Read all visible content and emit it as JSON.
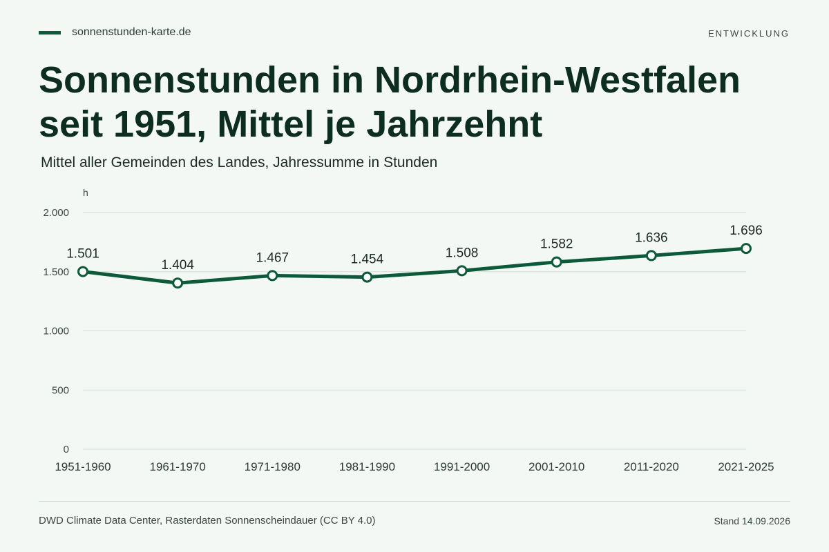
{
  "header": {
    "brand": "sonnenstunden-karte.de",
    "tag": "ENTWICKLUNG",
    "title": "Sonnenstunden in Nordrhein-Westfalen seit 1951, Mittel je Jahrzehnt",
    "subtitle": "Mittel aller Gemeinden des Landes, Jahressumme in Stunden"
  },
  "chart_data": {
    "type": "line",
    "categories": [
      "1951-1960",
      "1961-1970",
      "1971-1980",
      "1981-1990",
      "1991-2000",
      "2001-2010",
      "2011-2020",
      "2021-2025"
    ],
    "series": [
      {
        "values": [
          1501,
          1404,
          1467,
          1454,
          1508,
          1582,
          1636,
          1696
        ],
        "labels": [
          "1.501",
          "1.404",
          "1.467",
          "1.454",
          "1.508",
          "1.582",
          "1.636",
          "1.696"
        ]
      }
    ],
    "ylabel": "h",
    "ylim": [
      0,
      2000
    ],
    "yticks": [
      0,
      500,
      1000,
      1500,
      2000
    ],
    "ytick_labels": [
      "0",
      "500",
      "1.000",
      "1.500",
      "2.000"
    ],
    "grid": true,
    "colors": {
      "line": "#0d5a3a",
      "grid": "#d2dcd6",
      "marker_fill": "#ffffff"
    }
  },
  "footer": {
    "source": "DWD Climate Data Center, Rasterdaten Sonnenscheindauer (CC BY 4.0)",
    "stand": "Stand 14.09.2026"
  }
}
